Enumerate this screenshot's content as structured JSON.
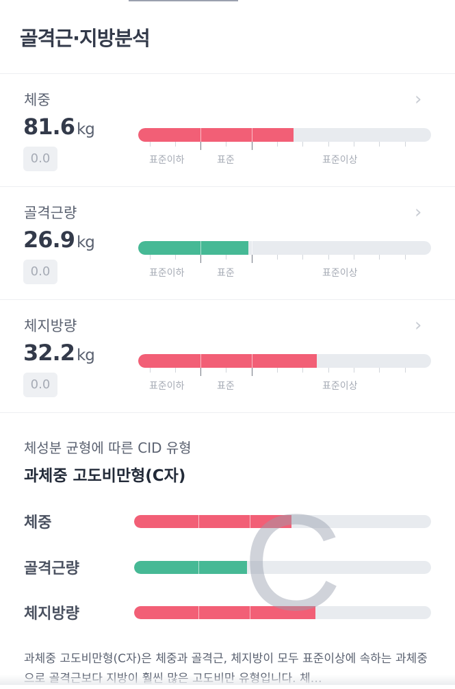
{
  "header": {
    "title": "골격근·지방분석"
  },
  "scale_labels": [
    "표준이하",
    "표준",
    "표준이상"
  ],
  "colors": {
    "over": "#f25f76",
    "normal": "#46b995",
    "track": "#e8ebef"
  },
  "metrics": [
    {
      "label": "체중",
      "value": "81.6",
      "unit": "kg",
      "delta": "0.0",
      "level_percent": 53,
      "status": "over"
    },
    {
      "label": "골격근량",
      "value": "26.9",
      "unit": "kg",
      "delta": "0.0",
      "level_percent": 37.5,
      "status": "normal"
    },
    {
      "label": "체지방량",
      "value": "32.2",
      "unit": "kg",
      "delta": "0.0",
      "level_percent": 61,
      "status": "over"
    }
  ],
  "cid": {
    "subtitle": "체성분 균형에 따른 CID 유형",
    "title": "과체중 고도비만형(C자)",
    "letter": "C",
    "rows": [
      {
        "label": "체중",
        "level_percent": 53,
        "status": "over"
      },
      {
        "label": "골격근량",
        "level_percent": 38,
        "status": "normal"
      },
      {
        "label": "체지방량",
        "level_percent": 61,
        "status": "over"
      }
    ],
    "description": "과체중 고도비만형(C자)은 체중과 골격근, 체지방이 모두 표준이상에 속하는 과체중으로 골격근보다 지방이 훨씬 많은 고도비만 유형입니다. 체…"
  }
}
